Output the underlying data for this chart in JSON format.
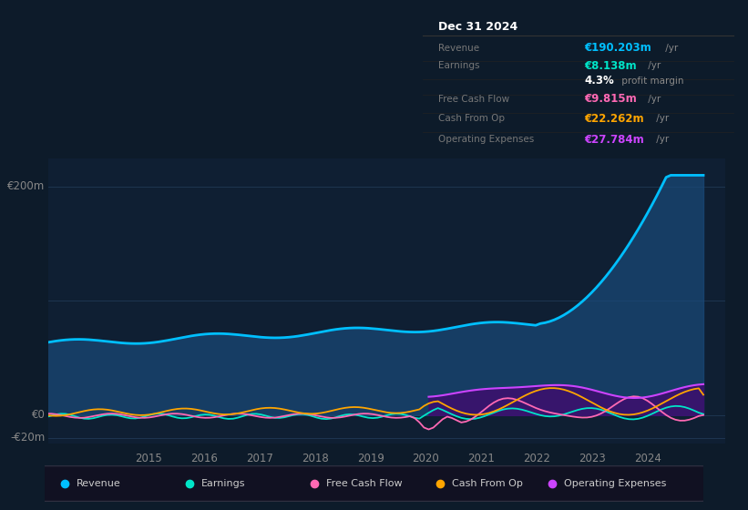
{
  "bg_color": "#0d1b2a",
  "plot_bg": "#0f1f33",
  "grid_color": "#1e3550",
  "info_title": "Dec 31 2024",
  "ylim": [
    -25,
    225
  ],
  "y_label_200": "€200m",
  "y_label_0": "€0",
  "y_label_neg20": "-€20m",
  "x_years": [
    2015,
    2016,
    2017,
    2018,
    2019,
    2020,
    2021,
    2022,
    2023,
    2024
  ],
  "revenue_color": "#00bfff",
  "earnings_color": "#00e5c8",
  "fcf_color": "#ff69b4",
  "cashop_color": "#ffa500",
  "opex_color": "#cc44ff",
  "revenue_fill_color": "#1a4a7a",
  "opex_fill_color": "#3d0f6e",
  "legend_items": [
    {
      "label": "Revenue",
      "color": "#00bfff"
    },
    {
      "label": "Earnings",
      "color": "#00e5c8"
    },
    {
      "label": "Free Cash Flow",
      "color": "#ff69b4"
    },
    {
      "label": "Cash From Op",
      "color": "#ffa500"
    },
    {
      "label": "Operating Expenses",
      "color": "#cc44ff"
    }
  ],
  "info_rows": [
    {
      "label": "Revenue",
      "value": "€190.203m",
      "suffix": " /yr",
      "vcolor": "#00bfff"
    },
    {
      "label": "Earnings",
      "value": "€8.138m",
      "suffix": " /yr",
      "vcolor": "#00e5c8"
    },
    {
      "label": "",
      "value": "4.3%",
      "suffix": " profit margin",
      "vcolor": "#ffffff"
    },
    {
      "label": "Free Cash Flow",
      "value": "€9.815m",
      "suffix": " /yr",
      "vcolor": "#ff69b4"
    },
    {
      "label": "Cash From Op",
      "value": "€22.262m",
      "suffix": " /yr",
      "vcolor": "#ffa500"
    },
    {
      "label": "Operating Expenses",
      "value": "€27.784m",
      "suffix": " /yr",
      "vcolor": "#cc44ff"
    }
  ]
}
